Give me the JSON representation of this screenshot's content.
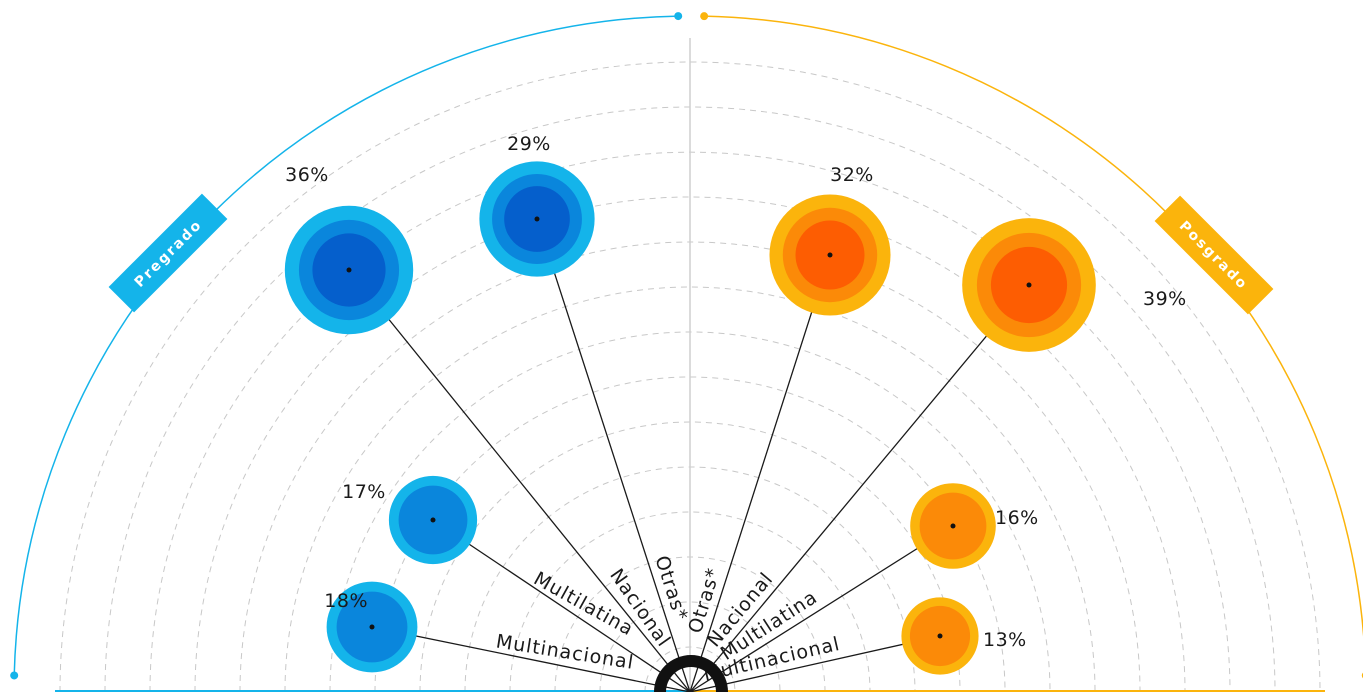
{
  "chart_data": {
    "type": "bubble",
    "groups": [
      {
        "name": "Pregrado",
        "colors": {
          "outer": "#14b4ea",
          "mid": "#0a86dc",
          "inner": "#055fcc"
        },
        "items": [
          {
            "category": "Multinacional",
            "value": 18,
            "label": "18%"
          },
          {
            "category": "Multilatina",
            "value": 17,
            "label": "17%"
          },
          {
            "category": "Nacional",
            "value": 36,
            "label": "36%"
          },
          {
            "category": "Otras*",
            "value": 29,
            "label": "29%"
          }
        ]
      },
      {
        "name": "Posgrado",
        "colors": {
          "outer": "#fbb40c",
          "mid": "#fb8a08",
          "inner": "#fd5d02"
        },
        "items": [
          {
            "category": "Otras*",
            "value": 32,
            "label": "32%"
          },
          {
            "category": "Nacional",
            "value": 39,
            "label": "39%"
          },
          {
            "category": "Multilatina",
            "value": 16,
            "label": "16%"
          },
          {
            "category": "Multinacional",
            "value": 13,
            "label": "13%"
          }
        ]
      }
    ],
    "grid": true
  },
  "colors": {
    "pregrado": "#14b4ea",
    "posgrado": "#fbb40c",
    "grid": "#c8c8c8",
    "divider": "#cfcfcf"
  }
}
